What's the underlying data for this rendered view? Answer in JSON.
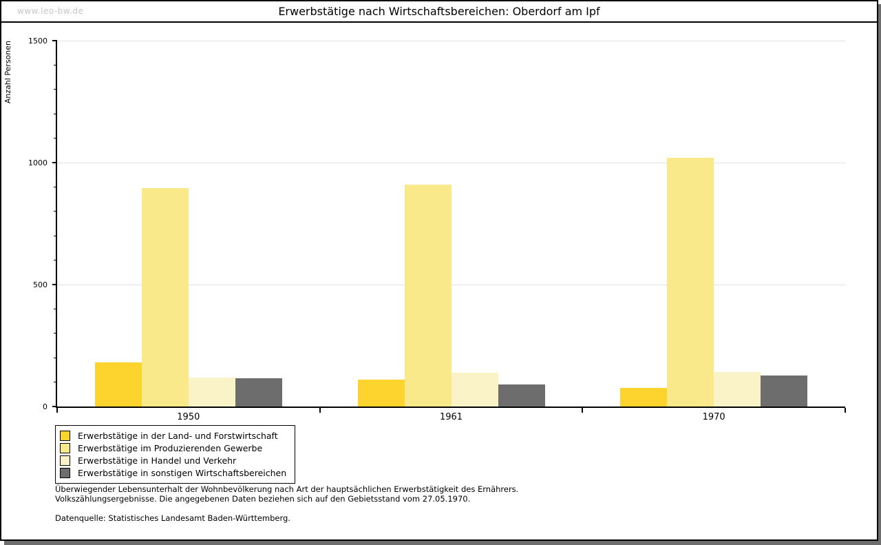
{
  "watermark": "www.leo-bw.de",
  "chart_data": {
    "type": "bar",
    "title": "Erwerbstätige nach Wirtschaftsbereichen: Oberdorf am Ipf",
    "xlabel": "",
    "ylabel": "Anzahl Personen",
    "categories": [
      "1950",
      "1961",
      "1970"
    ],
    "series": [
      {
        "name": "Erwerbstätige in der Land- und Forstwirtschaft",
        "color": "#fcd42d",
        "values": [
          180,
          110,
          75
        ]
      },
      {
        "name": "Erwerbstätige im Produzierenden Gewerbe",
        "color": "#fae98b",
        "values": [
          895,
          910,
          1020
        ]
      },
      {
        "name": "Erwerbstätige in Handel und Verkehr",
        "color": "#fbf3c8",
        "values": [
          120,
          138,
          140
        ]
      },
      {
        "name": "Erwerbstätige in sonstigen Wirtschaftsbereichen",
        "color": "#6d6d6d",
        "values": [
          117,
          90,
          126
        ]
      }
    ],
    "ylim": [
      0,
      1500
    ],
    "ytick_major": [
      0,
      500,
      1000,
      1500
    ],
    "ytick_minor_step": 100,
    "grid": true,
    "gridline_color": "#e2e2e2",
    "axis_color": "#000000",
    "legend_position": "bottom-left"
  },
  "footnotes": {
    "line1": "Überwiegender Lebensunterhalt der Wohnbevölkerung nach Art der hauptsächlichen Erwerbstätigkeit des Ernährers.",
    "line2": "Volkszählungsergebnisse. Die angegebenen Daten beziehen sich auf den Gebietsstand vom 27.05.1970.",
    "source": "Datenquelle: Statistisches Landesamt Baden-Württemberg."
  },
  "colors": {
    "watermark": "#c6c6c6",
    "shadow": "#6e6e6e",
    "border": "#000000",
    "background": "#ffffff"
  }
}
